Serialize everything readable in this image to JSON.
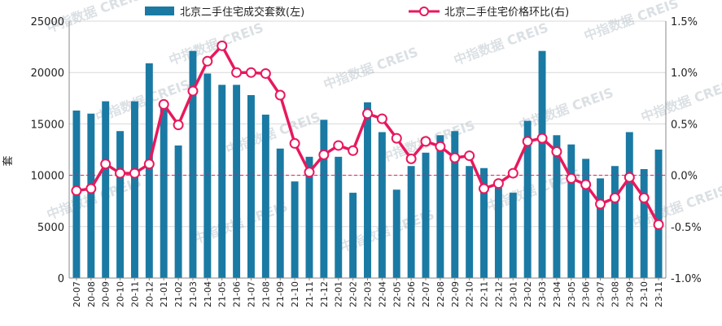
{
  "chart_data": {
    "type": "bar+line",
    "categories": [
      "20-07",
      "20-08",
      "20-09",
      "20-10",
      "20-11",
      "20-12",
      "21-01",
      "21-02",
      "21-03",
      "21-04",
      "21-05",
      "21-06",
      "21-07",
      "21-08",
      "21-09",
      "21-10",
      "21-11",
      "21-12",
      "22-01",
      "22-02",
      "22-03",
      "22-04",
      "22-05",
      "22-06",
      "22-07",
      "22-08",
      "22-09",
      "22-10",
      "22-11",
      "22-12",
      "23-01",
      "23-02",
      "23-03",
      "23-04",
      "23-05",
      "23-06",
      "23-07",
      "23-08",
      "23-09",
      "23-10",
      "23-11"
    ],
    "series": [
      {
        "name": "北京二手住宅成交套数(左)",
        "type": "bar",
        "axis": "left",
        "color": "#1a7aa3",
        "values": [
          16300,
          16000,
          17200,
          14300,
          17200,
          20900,
          16900,
          12900,
          22100,
          19900,
          18800,
          18800,
          17800,
          15900,
          12600,
          9400,
          11800,
          15400,
          11800,
          8300,
          17100,
          14200,
          8600,
          10900,
          12200,
          13900,
          14300,
          10900,
          10700,
          8800,
          8300,
          15300,
          22100,
          13900,
          13000,
          11600,
          9700,
          10900,
          14200,
          10600,
          12500
        ]
      },
      {
        "name": "北京二手住宅价格环比(右)",
        "type": "line",
        "axis": "right",
        "color": "#e8185d",
        "values": [
          -0.15,
          -0.13,
          0.11,
          0.02,
          0.02,
          0.11,
          0.69,
          0.49,
          0.82,
          1.11,
          1.26,
          1.0,
          1.0,
          0.99,
          0.78,
          0.31,
          0.03,
          0.2,
          0.29,
          0.24,
          0.6,
          0.55,
          0.36,
          0.16,
          0.33,
          0.28,
          0.17,
          0.19,
          -0.13,
          -0.08,
          0.02,
          0.33,
          0.36,
          0.23,
          -0.03,
          -0.09,
          -0.28,
          -0.22,
          -0.02,
          -0.22,
          -0.48
        ]
      }
    ],
    "ylabel": "套",
    "ylim_left": [
      0,
      25000
    ],
    "yticks_left": [
      "0",
      "5000",
      "10000",
      "15000",
      "20000",
      "25000"
    ],
    "ylim_right": [
      -1.0,
      1.5
    ],
    "yticks_right": [
      "-1.0%",
      "-0.5%",
      "0.0%",
      "0.5%",
      "1.0%",
      "1.5%"
    ],
    "reference_line": 0.0,
    "legend_position": "top",
    "grid": "horizontal"
  },
  "watermark": "中指数据 CREIS"
}
